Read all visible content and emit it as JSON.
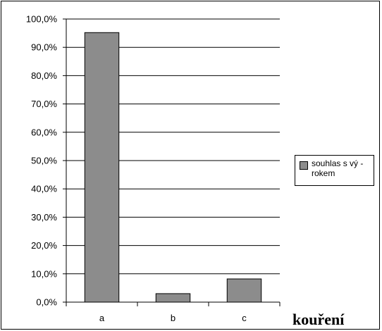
{
  "chart_data": {
    "type": "bar",
    "categories": [
      "a",
      "b",
      "c"
    ],
    "series": [
      {
        "name": "souhlas s vý - rokem",
        "values": [
          95.2,
          3.0,
          8.2
        ],
        "color": "#8c8c8c"
      }
    ],
    "ylim": [
      0,
      100
    ],
    "y_ticks": [
      "0,0%",
      "10,0%",
      "20,0%",
      "30,0%",
      "40,0%",
      "50,0%",
      "60,0%",
      "70,0%",
      "80,0%",
      "90,0%",
      "100,0%"
    ],
    "xlabel": "kouření",
    "grid": true,
    "legend_position": "right"
  }
}
